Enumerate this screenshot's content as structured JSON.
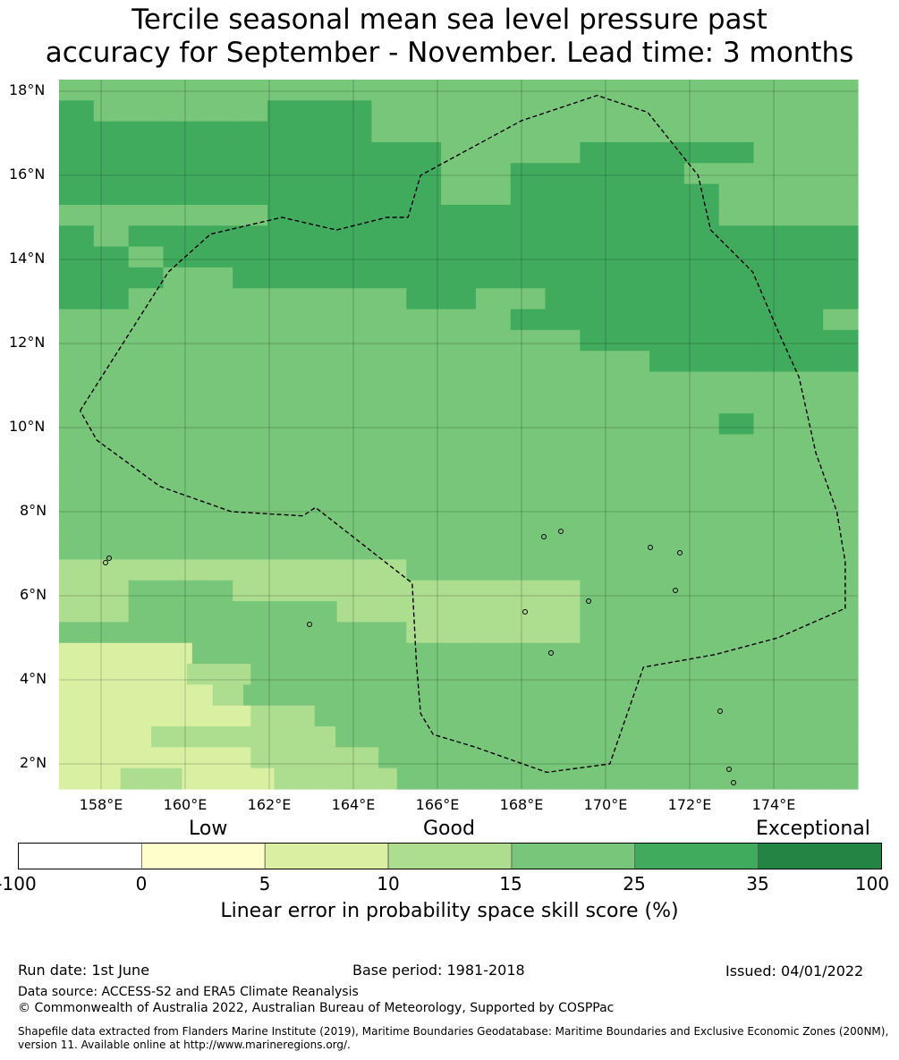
{
  "title": {
    "line1": "Tercile seasonal mean sea level pressure past",
    "line2": "accuracy for September - November. Lead time: 3 months"
  },
  "map": {
    "lon_range": [
      157,
      176
    ],
    "lat_range": [
      1.4,
      18.3
    ],
    "lat_ticks": [
      {
        "value": 18,
        "label": "18°N"
      },
      {
        "value": 16,
        "label": "16°N"
      },
      {
        "value": 14,
        "label": "14°N"
      },
      {
        "value": 12,
        "label": "12°N"
      },
      {
        "value": 10,
        "label": "10°N"
      },
      {
        "value": 8,
        "label": "8°N"
      },
      {
        "value": 6,
        "label": "6°N"
      },
      {
        "value": 4,
        "label": "4°N"
      },
      {
        "value": 2,
        "label": "2°N"
      }
    ],
    "lon_ticks": [
      {
        "value": 158,
        "label": "158°E"
      },
      {
        "value": 160,
        "label": "160°E"
      },
      {
        "value": 162,
        "label": "162°E"
      },
      {
        "value": 164,
        "label": "164°E"
      },
      {
        "value": 166,
        "label": "166°E"
      },
      {
        "value": 168,
        "label": "168°E"
      },
      {
        "value": 170,
        "label": "170°E"
      },
      {
        "value": 172,
        "label": "172°E"
      },
      {
        "value": 174,
        "label": "174°E"
      }
    ],
    "grid_lines": true,
    "eez_boundary_style": "dashed black",
    "eez_boundary": [
      [
        157.5,
        10.4
      ],
      [
        158.9,
        12.6
      ],
      [
        159.6,
        13.7
      ],
      [
        160.6,
        14.6
      ],
      [
        162.3,
        15.0
      ],
      [
        163.6,
        14.7
      ],
      [
        164.8,
        15.0
      ],
      [
        165.3,
        15.0
      ],
      [
        165.6,
        16.0
      ],
      [
        168.0,
        17.3
      ],
      [
        169.8,
        17.9
      ],
      [
        171.0,
        17.5
      ],
      [
        172.2,
        16.0
      ],
      [
        172.5,
        14.7
      ],
      [
        173.5,
        13.7
      ],
      [
        174.1,
        12.3
      ],
      [
        174.6,
        11.2
      ],
      [
        175.0,
        9.4
      ],
      [
        175.5,
        8.0
      ],
      [
        175.7,
        6.8
      ],
      [
        175.7,
        5.7
      ],
      [
        174.1,
        5.0
      ],
      [
        172.6,
        4.6
      ],
      [
        170.9,
        4.3
      ],
      [
        170.1,
        2.0
      ],
      [
        168.6,
        1.8
      ],
      [
        166.9,
        2.4
      ],
      [
        165.9,
        2.7
      ],
      [
        165.6,
        3.2
      ],
      [
        165.5,
        4.4
      ],
      [
        165.4,
        6.3
      ],
      [
        163.1,
        8.1
      ],
      [
        162.8,
        7.9
      ],
      [
        161.1,
        8.0
      ],
      [
        159.4,
        8.6
      ],
      [
        157.9,
        9.7
      ],
      [
        157.5,
        10.4
      ]
    ],
    "cell_rows": [
      "11111111111111111111111",
      "21111122211111111111111",
      "22222222211111111111111",
      "22222222222111122222111",
      "22222222222112222211111",
      "22222222222112222221111",
      "11111122222222222221111",
      "21222222222222222222222",
      "22122222222222222222222",
      "22211222222222222222222",
      "22111111112211222222222",
      "11111111111112222222221",
      "11111111111111122222222",
      "11111111111111111222222",
      "11111111111111111111111",
      "11111111111111111111111",
      "11111111111111111112111",
      "11111111111111111111111",
      "11111111111111111111111",
      "11111111111111111111111",
      "11111111111111111111111",
      "11111111111111111111111",
      "11111111111111111111111",
      "00000000001111111111111",
      "00111000000000011111111",
      "00111111000000011111111",
      "11111111110000011111111",
      "KKKK11111111111111111111",
      "KKKK001111111111111111111",
      "KKKKK011111111111111111111",
      "KKKKKK0011111111111111111",
      "KKK00000011111111111111111",
      "KKKKKK0000111111111111111",
      "KK00KKK0000111111111111111"
    ],
    "cell_colors": {
      "K": "#d9f0a3",
      "0": "#addd8e",
      "1": "#78c679",
      "2": "#41ab5d"
    }
  },
  "colorbar": {
    "categories": [
      {
        "label": "Low"
      },
      {
        "label": "Good"
      },
      {
        "label": "Exceptional"
      }
    ],
    "bins": [
      "#ffffff",
      "#ffffcc",
      "#d9f0a3",
      "#addd8e",
      "#78c679",
      "#41ab5d",
      "#238443"
    ],
    "ticks": [
      "-100",
      "0",
      "5",
      "10",
      "15",
      "25",
      "35",
      "100"
    ],
    "label": "Linear error in probability space skill score (%)"
  },
  "footer": {
    "run_date": "Run date: 1st June",
    "base_period": "Base period: 1981-2018",
    "issued": "Issued: 04/01/2022",
    "data_source": "Data source: ACCESS-S2 and ERA5 Climate Reanalysis",
    "copyright": "© Commonwealth of Australia 2022, Australian Bureau of Meteorology, Supported by COSPPac",
    "shapefile": "Shapefile data extracted from Flanders Marine Institute (2019), Maritime Boundaries Geodatabase: Maritime Boundaries and Exclusive Economic Zones (200NM), version 11. Available online at http://www.marineregions.org/."
  }
}
